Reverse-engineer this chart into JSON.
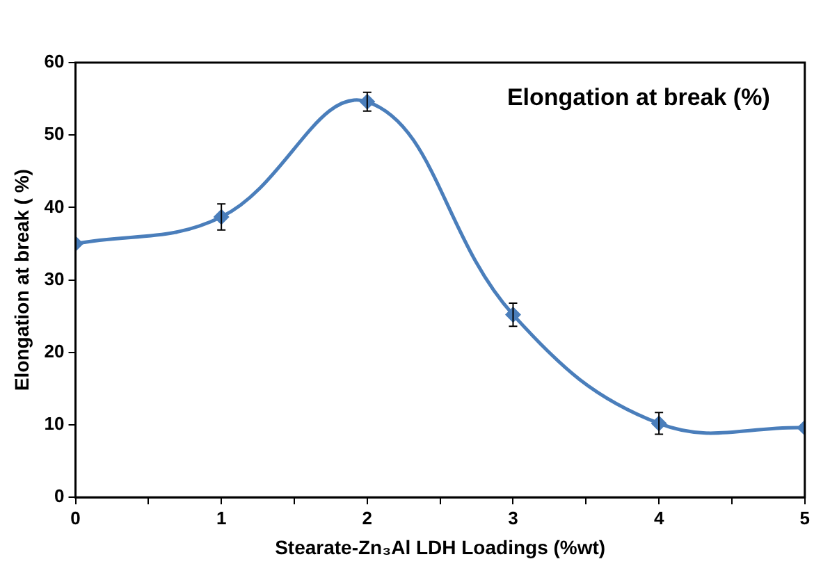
{
  "chart_data": {
    "type": "line",
    "title": "Elongation at break (%)",
    "xlabel": "Stearate-Zn₃Al LDH Loadings (%wt)",
    "ylabel": "Elongation at break ( %)",
    "x": [
      0,
      1,
      2,
      3,
      4,
      5
    ],
    "series": [
      {
        "color": "#4a7ebb",
        "values": [
          35,
          38.7,
          54.6,
          25.2,
          10.2,
          9.6
        ],
        "errors": [
          null,
          1.8,
          1.3,
          1.6,
          1.5,
          null
        ]
      }
    ],
    "xlim": [
      0,
      5
    ],
    "xticks": [
      0,
      {
        "value": 0.5,
        "label": null
      },
      1,
      {
        "value": 1.5,
        "label": null
      },
      2,
      {
        "value": 2.5,
        "label": null
      },
      3,
      {
        "value": 3.5,
        "label": null
      },
      4,
      {
        "value": 4.5,
        "label": null
      },
      5
    ],
    "ylim": [
      0,
      60
    ],
    "yticks": [
      0,
      10,
      20,
      30,
      40,
      50,
      60
    ],
    "grid": false,
    "legend": false,
    "marker": "diamond",
    "line_style": "solid"
  }
}
